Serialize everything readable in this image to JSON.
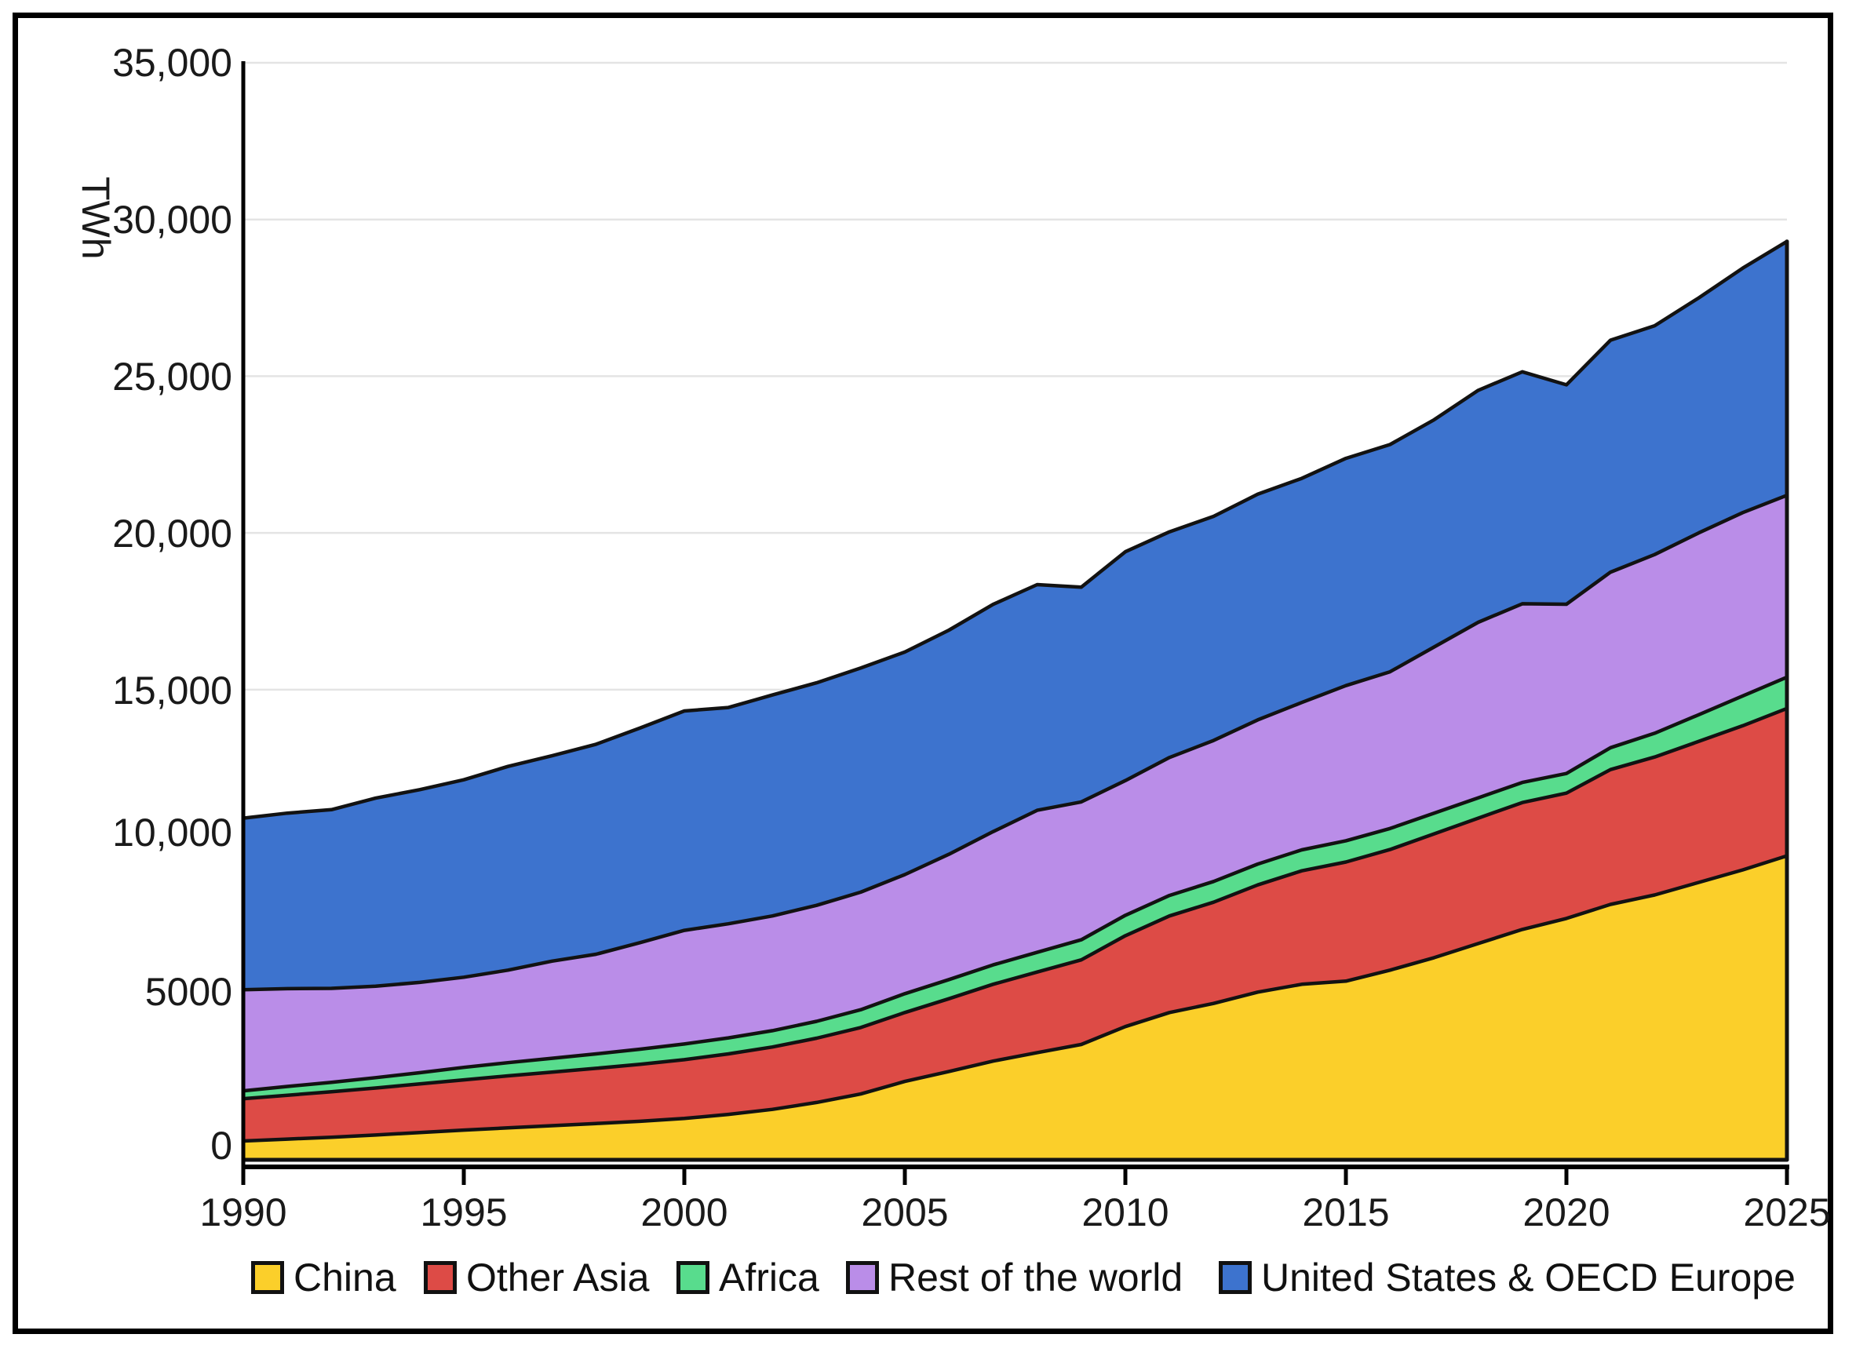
{
  "y_axis": {
    "unit_label": "TWh",
    "tick_labels": [
      "35,000",
      "30,000",
      "25,000",
      "20,000",
      "15,000",
      "10,000",
      "5000",
      "0"
    ],
    "tick_values": [
      35000,
      30000,
      25000,
      20000,
      15000,
      10000,
      5000,
      0
    ]
  },
  "x_axis": {
    "tick_labels": [
      "1990",
      "1995",
      "2000",
      "2005",
      "2010",
      "2015",
      "2020",
      "2025"
    ],
    "tick_values": [
      1990,
      1995,
      2000,
      2005,
      2010,
      2015,
      2020,
      2025
    ]
  },
  "legend": {
    "items": [
      {
        "label": "China",
        "color": "#FBCF2A"
      },
      {
        "label": "Other Asia",
        "color": "#DD4B46"
      },
      {
        "label": "Africa",
        "color": "#58DC8D"
      },
      {
        "label": "Rest of the world",
        "color": "#BA8DE8"
      },
      {
        "label": "United States & OECD Europe",
        "color": "#3D73CE"
      }
    ]
  },
  "chart_data": {
    "type": "area",
    "stacked": true,
    "title": "",
    "xlabel": "",
    "ylabel": "TWh",
    "xlim": [
      1990,
      2025
    ],
    "ylim": [
      0,
      35000
    ],
    "grid": true,
    "legend_position": "bottom",
    "outline_color": "#121212",
    "gridline_color": "#e4e4e4",
    "x": [
      1990,
      1991,
      1992,
      1993,
      1994,
      1995,
      1996,
      1997,
      1998,
      1999,
      2000,
      2001,
      2002,
      2003,
      2004,
      2005,
      2006,
      2007,
      2008,
      2009,
      2010,
      2011,
      2012,
      2013,
      2014,
      2015,
      2016,
      2017,
      2018,
      2019,
      2020,
      2021,
      2022,
      2023,
      2024,
      2025
    ],
    "series": [
      {
        "name": "China",
        "color": "#FBCF2A",
        "values": [
          600,
          660,
          720,
          790,
          870,
          950,
          1020,
          1090,
          1160,
          1230,
          1320,
          1450,
          1610,
          1830,
          2100,
          2500,
          2820,
          3150,
          3420,
          3680,
          4250,
          4700,
          4990,
          5350,
          5600,
          5700,
          6050,
          6450,
          6900,
          7350,
          7700,
          8150,
          8450,
          8850,
          9250,
          9700
        ]
      },
      {
        "name": "Other Asia",
        "color": "#DD4B46",
        "values": [
          1350,
          1400,
          1450,
          1500,
          1550,
          1600,
          1660,
          1710,
          1760,
          1820,
          1875,
          1930,
          1990,
          2050,
          2120,
          2200,
          2320,
          2450,
          2570,
          2700,
          2900,
          3080,
          3230,
          3420,
          3620,
          3800,
          3850,
          3950,
          4000,
          4050,
          4000,
          4300,
          4400,
          4500,
          4600,
          4700
        ]
      },
      {
        "name": "Africa",
        "color": "#58DC8D",
        "values": [
          250,
          280,
          300,
          330,
          360,
          400,
          420,
          440,
          460,
          480,
          500,
          510,
          520,
          540,
          570,
          600,
          610,
          620,
          630,
          640,
          650,
          655,
          660,
          665,
          670,
          680,
          670,
          660,
          650,
          640,
          625,
          700,
          760,
          850,
          950,
          1000
        ]
      },
      {
        "name": "Rest of the world",
        "color": "#BA8DE8",
        "values": [
          3225,
          3120,
          3000,
          2920,
          2880,
          2875,
          2950,
          3100,
          3180,
          3400,
          3625,
          3640,
          3660,
          3700,
          3750,
          3800,
          4000,
          4250,
          4530,
          4400,
          4300,
          4400,
          4500,
          4600,
          4700,
          4950,
          5000,
          5300,
          5600,
          5700,
          5400,
          5600,
          5700,
          5800,
          5850,
          5800
        ]
      },
      {
        "name": "United States & OECD Europe",
        "color": "#3D73CE",
        "values": [
          5475,
          5600,
          5700,
          6000,
          6150,
          6300,
          6500,
          6550,
          6700,
          6850,
          7000,
          6900,
          7050,
          7100,
          7150,
          7100,
          7150,
          7250,
          7200,
          6850,
          7300,
          7200,
          7150,
          7200,
          7150,
          7250,
          7250,
          7250,
          7400,
          7400,
          7000,
          7400,
          7300,
          7500,
          7800,
          8100
        ]
      }
    ],
    "totals_by_key_year": {
      "1990": 10900,
      "1995": 12125,
      "2000": 14320,
      "2005": 16200,
      "2010": 19400,
      "2015": 22380,
      "2020": 24725,
      "2025": 29300
    }
  }
}
